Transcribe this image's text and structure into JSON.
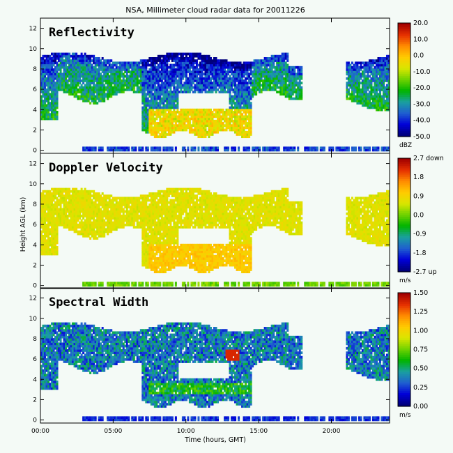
{
  "title": "NSA, Millimeter cloud radar data for 20011226",
  "xlabel": "Time (hours, GMT)",
  "ylabel": "Height AGL (km)",
  "chart_data": [
    {
      "type": "heatmap",
      "title": "Reflectivity",
      "xlabel": "Time (hours, GMT)",
      "ylabel": "Height AGL (km)",
      "x_ticks": [
        "00:00",
        "05:00",
        "10:00",
        "15:00",
        "20:00"
      ],
      "x_tick_hours": [
        0,
        5,
        10,
        15,
        20
      ],
      "xlim": [
        0,
        24
      ],
      "y_ticks": [
        0,
        2,
        4,
        6,
        8,
        10,
        12
      ],
      "ylim": [
        -0.3,
        13
      ],
      "colorbar": {
        "unit": "dBZ",
        "ticks": [
          "20.0",
          "10.0",
          "0.0",
          "-10.0",
          "-20.0",
          "-30.0",
          "-40.0",
          "-50.0"
        ],
        "range": [
          -50,
          20
        ]
      },
      "echo": {
        "upper_layer_km": [
          6,
          9.8
        ],
        "core_km": [
          1.5,
          4
        ],
        "core_hours": [
          7.5,
          14.5
        ],
        "core_max_dBZ": 0,
        "typical_dBZ": -25
      }
    },
    {
      "type": "heatmap",
      "title": "Doppler Velocity",
      "xlabel": "Time (hours, GMT)",
      "ylabel": "Height AGL (km)",
      "x_ticks": [
        "00:00",
        "05:00",
        "10:00",
        "15:00",
        "20:00"
      ],
      "x_tick_hours": [
        0,
        5,
        10,
        15,
        20
      ],
      "xlim": [
        0,
        24
      ],
      "y_ticks": [
        0,
        2,
        4,
        6,
        8,
        10,
        12
      ],
      "ylim": [
        -0.3,
        13
      ],
      "colorbar": {
        "unit": "m/s",
        "ticks": [
          "2.7 down",
          "1.8",
          "0.9",
          "0.0",
          "-0.9",
          "-1.8",
          "-2.7 up"
        ],
        "range": [
          -2.7,
          2.7
        ]
      },
      "echo": {
        "typical_m_s": 0.5,
        "core_m_s": 0.9
      }
    },
    {
      "type": "heatmap",
      "title": "Spectral Width",
      "xlabel": "Time (hours, GMT)",
      "ylabel": "Height AGL (km)",
      "x_ticks": [
        "00:00",
        "05:00",
        "10:00",
        "15:00",
        "20:00"
      ],
      "x_tick_hours": [
        0,
        5,
        10,
        15,
        20
      ],
      "xlim": [
        0,
        24
      ],
      "y_ticks": [
        0,
        2,
        4,
        6,
        8,
        10,
        12
      ],
      "ylim": [
        -0.3,
        13
      ],
      "colorbar": {
        "unit": "m/s",
        "ticks": [
          "1.50",
          "1.25",
          "1.00",
          "0.75",
          "0.50",
          "0.25",
          "0.00"
        ],
        "range": [
          0,
          1.5
        ]
      },
      "echo": {
        "typical_m_s": 0.3,
        "max_m_s": 1.4,
        "max_at_hour": 13.2,
        "max_at_km": 6.4
      }
    }
  ],
  "colors": {
    "background": "#f4faf6",
    "colormap": [
      "#00007a",
      "#0000d8",
      "#1f5fd0",
      "#1aa0a0",
      "#00b400",
      "#6ed200",
      "#d8e600",
      "#ffcc00",
      "#ff8c00",
      "#e63000",
      "#a00000"
    ]
  }
}
